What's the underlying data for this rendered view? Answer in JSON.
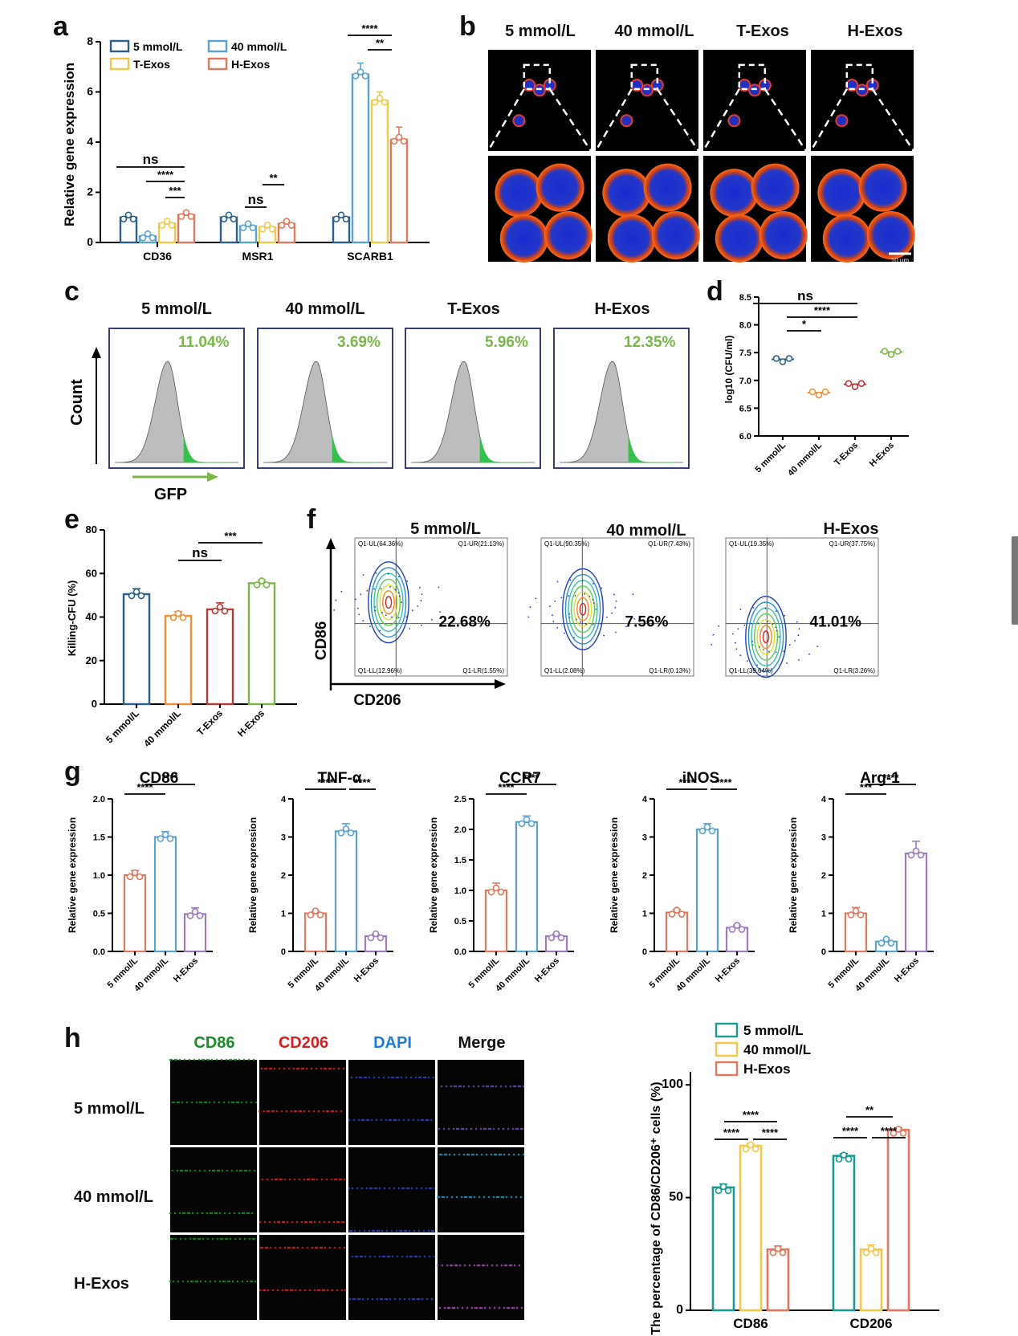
{
  "panel_labels": {
    "a": "a",
    "b": "b",
    "c": "c",
    "d": "d",
    "e": "e",
    "f": "f",
    "g": "g",
    "h": "h"
  },
  "colors": {
    "blue": "#2c5f8a",
    "lightblue": "#5aa3d1",
    "yellow": "#f2c94c",
    "red": "#e07860",
    "orange": "#f0913a",
    "darkred": "#b43a3a",
    "green": "#7ab648",
    "teal": "#1a9b8f",
    "purple": "#9b7cc0"
  },
  "panel_a": {
    "ylabel": "Relative gene expression",
    "legend": [
      "5 mmol/L",
      "40 mmol/L",
      "T-Exos",
      "H-Exos"
    ],
    "sig": [
      "ns",
      "****",
      "***",
      "ns",
      "**",
      "****",
      "**"
    ]
  },
  "panel_b": {
    "headers": [
      "5 mmol/L",
      "40 mmol/L",
      "T-Exos",
      "H-Exos"
    ],
    "scalebar": "10 μm"
  },
  "panel_c": {
    "headers": [
      "5 mmol/L",
      "40 mmol/L",
      "T-Exos",
      "H-Exos"
    ],
    "percents": [
      "11.04%",
      "3.69%",
      "5.96%",
      "12.35%"
    ],
    "ylabel": "Count",
    "xlabel": "GFP"
  },
  "panel_d": {
    "ylabel": "log10 (CFU/ml)",
    "sig": [
      "ns",
      "****",
      "*"
    ]
  },
  "panel_e": {
    "ylabel": "Killing-CFU (%)",
    "sig": [
      "***",
      "ns"
    ]
  },
  "panel_f": {
    "headers": [
      "5 mmol/L",
      "40 mmol/L",
      "H-Exos"
    ],
    "center": [
      "22.68%",
      "7.56%",
      "41.01%"
    ],
    "quads": [
      {
        "ul": "Q1-UL(64.36%)",
        "ur": "Q1-UR(21.13%)",
        "ll": "Q1-LL(12.96%)",
        "lr": "Q1-LR(1.55%)"
      },
      {
        "ul": "Q1-UL(90.35%)",
        "ur": "Q1-UR(7.43%)",
        "ll": "Q1-LL(2.08%)",
        "lr": "Q1-LR(0.13%)"
      },
      {
        "ul": "Q1-UL(19.35%)",
        "ur": "Q1-UR(37.75%)",
        "ll": "Q1-LL(39.64%)",
        "lr": "Q1-LR(3.26%)"
      }
    ],
    "ylabel": "CD86",
    "xlabel": "CD206"
  },
  "panel_h": {
    "cols": [
      "CD86",
      "CD206",
      "DAPI",
      "Merge"
    ],
    "rows": [
      "5 mmol/L",
      "40 mmol/L",
      "H-Exos"
    ],
    "ylabel": "The percentage of CD86/CD206⁺ cells (%)",
    "legend": [
      "5 mmol/L",
      "40 mmol/L",
      "H-Exos"
    ],
    "sig": [
      "****",
      "****",
      "****",
      "****",
      "****",
      "**"
    ]
  },
  "chart_data": [
    {
      "type": "bar",
      "id": "a",
      "categories": [
        "CD36",
        "MSR1",
        "SCARB1"
      ],
      "ylim": [
        0,
        8
      ],
      "yticks": [
        0,
        2,
        4,
        6,
        8
      ],
      "ylabel": "Relative gene expression",
      "series": [
        {
          "name": "5 mmol/L",
          "color": "#2c5f8a",
          "values": [
            1.0,
            1.0,
            1.0
          ],
          "err": [
            0.05,
            0.05,
            0.12
          ]
        },
        {
          "name": "40 mmol/L",
          "color": "#5aa3d1",
          "values": [
            0.25,
            0.65,
            6.7
          ],
          "err": [
            0.03,
            0.05,
            0.45
          ]
        },
        {
          "name": "T-Exos",
          "color": "#f2c94c",
          "values": [
            0.75,
            0.6,
            5.65
          ],
          "err": [
            0.08,
            0.04,
            0.35
          ]
        },
        {
          "name": "H-Exos",
          "color": "#e07860",
          "values": [
            1.1,
            0.75,
            4.1
          ],
          "err": [
            0.15,
            0.05,
            0.5
          ]
        }
      ]
    },
    {
      "type": "scatter",
      "id": "d",
      "categories": [
        "5 mmol/L",
        "40 mmol/L",
        "T-Exos",
        "H-Exos"
      ],
      "ylim": [
        6.0,
        8.5
      ],
      "yticks": [
        6.0,
        6.5,
        7.0,
        7.5,
        8.0,
        8.5
      ],
      "ylabel": "log10 (CFU/ml)",
      "values": [
        7.38,
        6.78,
        6.93,
        7.51
      ],
      "colors": [
        "#2c5f8a",
        "#f0913a",
        "#b43a3a",
        "#7ab648"
      ]
    },
    {
      "type": "bar",
      "id": "e",
      "categories": [
        "5 mmol/L",
        "40 mmol/L",
        "T-Exos",
        "H-Exos"
      ],
      "ylim": [
        0,
        80
      ],
      "yticks": [
        0,
        20,
        40,
        60,
        80
      ],
      "ylabel": "Killing-CFU (%)",
      "values": [
        50.5,
        40.5,
        43.5,
        55.5
      ],
      "err": [
        2.5,
        2,
        3,
        1.5
      ],
      "colors": [
        "#2c5f8a",
        "#f0913a",
        "#b43a3a",
        "#7ab648"
      ]
    },
    {
      "type": "bar",
      "id": "g1",
      "title": "CD86",
      "categories": [
        "5 mmol/L",
        "40 mmol/L",
        "H-Exos"
      ],
      "ylim": [
        0,
        2.0
      ],
      "yticks": [
        0.0,
        0.5,
        1.0,
        1.5,
        2.0
      ],
      "values": [
        1.0,
        1.5,
        0.49
      ],
      "err": [
        0.06,
        0.07,
        0.08
      ],
      "sig": [
        "****",
        "****"
      ]
    },
    {
      "type": "bar",
      "id": "g2",
      "title": "TNF-α",
      "categories": [
        "5 mmol/L",
        "40 mmol/L",
        "H-Exos"
      ],
      "ylim": [
        0,
        4
      ],
      "yticks": [
        0,
        1,
        2,
        3,
        4
      ],
      "values": [
        1.0,
        3.15,
        0.4
      ],
      "err": [
        0.05,
        0.2,
        0.04
      ],
      "sig": [
        "****",
        "****"
      ]
    },
    {
      "type": "bar",
      "id": "g3",
      "title": "CCR7",
      "categories": [
        "5 mmol/L",
        "40 mmol/L",
        "H-Exos"
      ],
      "ylim": [
        0,
        2.5
      ],
      "yticks": [
        0.0,
        0.5,
        1.0,
        1.5,
        2.0,
        2.5
      ],
      "values": [
        1.0,
        2.12,
        0.25
      ],
      "err": [
        0.12,
        0.1,
        0.03
      ],
      "sig": [
        "****",
        "****"
      ]
    },
    {
      "type": "bar",
      "id": "g4",
      "title": "iNOS",
      "categories": [
        "5 mmol/L",
        "40 mmol/L",
        "H-Exos"
      ],
      "ylim": [
        0,
        4
      ],
      "yticks": [
        0,
        1,
        2,
        3,
        4
      ],
      "values": [
        1.02,
        3.2,
        0.62
      ],
      "err": [
        0.08,
        0.15,
        0.07
      ],
      "sig": [
        "****",
        "****"
      ]
    },
    {
      "type": "bar",
      "id": "g5",
      "title": "Arg-1",
      "categories": [
        "5 mmol/L",
        "40 mmol/L",
        "H-Exos"
      ],
      "ylim": [
        0,
        4
      ],
      "yticks": [
        0,
        1,
        2,
        3,
        4
      ],
      "values": [
        1.0,
        0.26,
        2.57
      ],
      "err": [
        0.15,
        0.02,
        0.32
      ],
      "sig": [
        "***",
        "****"
      ]
    },
    {
      "type": "bar",
      "id": "h",
      "categories": [
        "CD86",
        "CD206"
      ],
      "ylim": [
        0,
        100
      ],
      "yticks": [
        0,
        50,
        100
      ],
      "series": [
        {
          "name": "5 mmol/L",
          "color": "#1a9b8f",
          "values": [
            54.5,
            68.5
          ],
          "err": [
            1.5,
            1
          ]
        },
        {
          "name": "40 mmol/L",
          "color": "#f2c94c",
          "values": [
            73,
            27
          ],
          "err": [
            1,
            2
          ]
        },
        {
          "name": "H-Exos",
          "color": "#e07860",
          "values": [
            27,
            80
          ],
          "err": [
            1.5,
            1
          ]
        }
      ]
    }
  ]
}
